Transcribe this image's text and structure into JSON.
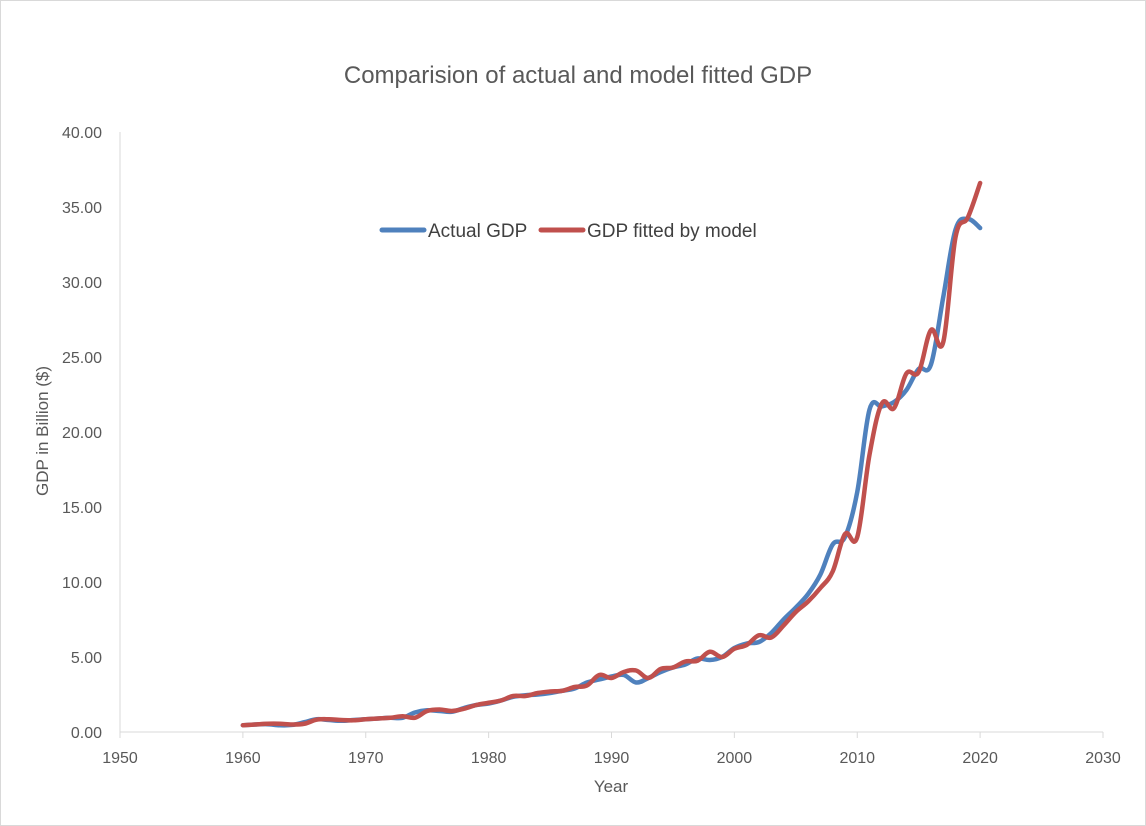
{
  "chart_data": {
    "type": "line",
    "title": "Comparision of actual and model fitted GDP",
    "xlabel": "Year",
    "ylabel": "GDP in Billion ($)",
    "xlim": [
      1950,
      2030
    ],
    "ylim": [
      0,
      40
    ],
    "x_ticks": [
      "1950",
      "1960",
      "1970",
      "1980",
      "1990",
      "2000",
      "2010",
      "2020",
      "2030"
    ],
    "y_ticks": [
      "0.00",
      "5.00",
      "10.00",
      "15.00",
      "20.00",
      "25.00",
      "30.00",
      "35.00",
      "40.00"
    ],
    "grid": false,
    "legend_position": "top-center",
    "x": [
      1960,
      1961,
      1962,
      1963,
      1964,
      1965,
      1966,
      1967,
      1968,
      1969,
      1970,
      1971,
      1972,
      1973,
      1974,
      1975,
      1976,
      1977,
      1978,
      1979,
      1980,
      1981,
      1982,
      1983,
      1984,
      1985,
      1986,
      1987,
      1988,
      1989,
      1990,
      1991,
      1992,
      1993,
      1994,
      1995,
      1996,
      1997,
      1998,
      1999,
      2000,
      2001,
      2002,
      2003,
      2004,
      2005,
      2006,
      2007,
      2008,
      2009,
      2010,
      2011,
      2012,
      2013,
      2014,
      2015,
      2016,
      2017,
      2018,
      2019,
      2020
    ],
    "series": [
      {
        "name": "Actual GDP",
        "color": "#4f81bd",
        "values": [
          0.45,
          0.5,
          0.52,
          0.45,
          0.47,
          0.65,
          0.85,
          0.8,
          0.75,
          0.8,
          0.85,
          0.9,
          0.95,
          0.95,
          1.3,
          1.45,
          1.4,
          1.35,
          1.6,
          1.8,
          1.9,
          2.1,
          2.35,
          2.45,
          2.5,
          2.6,
          2.75,
          2.9,
          3.3,
          3.5,
          3.7,
          3.8,
          3.3,
          3.6,
          4.0,
          4.3,
          4.5,
          4.9,
          4.8,
          5.0,
          5.6,
          5.9,
          6.0,
          6.6,
          7.5,
          8.3,
          9.2,
          10.5,
          12.5,
          13.0,
          16.0,
          21.5,
          21.7,
          22.0,
          22.8,
          24.2,
          24.5,
          29.0,
          33.5,
          34.2,
          33.6
        ]
      },
      {
        "name": "GDP fitted by model",
        "color": "#c0504d",
        "values": [
          0.45,
          0.5,
          0.55,
          0.55,
          0.5,
          0.55,
          0.82,
          0.85,
          0.8,
          0.78,
          0.85,
          0.9,
          0.95,
          1.05,
          0.95,
          1.4,
          1.5,
          1.4,
          1.55,
          1.8,
          1.95,
          2.1,
          2.4,
          2.4,
          2.6,
          2.7,
          2.75,
          3.0,
          3.1,
          3.8,
          3.6,
          4.0,
          4.1,
          3.6,
          4.2,
          4.3,
          4.7,
          4.75,
          5.35,
          5.0,
          5.55,
          5.8,
          6.45,
          6.3,
          7.1,
          8.0,
          8.7,
          9.6,
          10.7,
          13.2,
          13.0,
          18.5,
          21.9,
          21.6,
          23.9,
          24.0,
          26.8,
          26.0,
          33.0,
          34.3,
          36.6
        ]
      }
    ]
  }
}
